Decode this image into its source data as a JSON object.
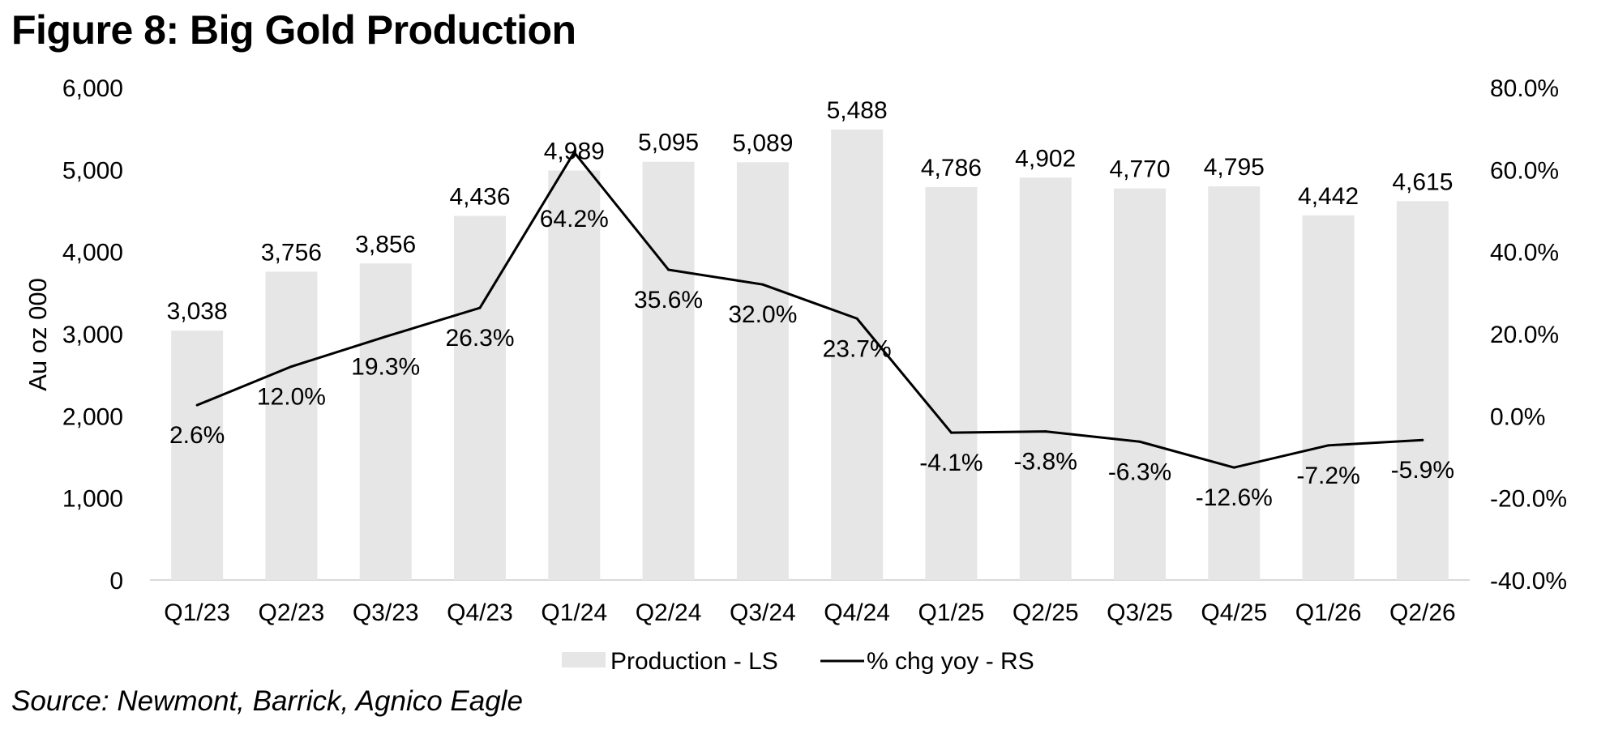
{
  "title": "Figure 8: Big Gold Production",
  "source": "Source: Newmont, Barrick, Agnico Eagle",
  "chart_data": {
    "type": "bar",
    "categories": [
      "Q1/23",
      "Q2/23",
      "Q3/23",
      "Q4/23",
      "Q1/24",
      "Q2/24",
      "Q3/24",
      "Q4/24",
      "Q1/25",
      "Q2/25",
      "Q3/25",
      "Q4/25",
      "Q1/26",
      "Q2/26"
    ],
    "series": [
      {
        "name": "Production - LS",
        "type": "bar",
        "axis": "left",
        "color": "#e6e6e6",
        "values": [
          3038,
          3756,
          3856,
          4436,
          4989,
          5095,
          5089,
          5488,
          4786,
          4902,
          4770,
          4795,
          4442,
          4615
        ],
        "labels": [
          "3,038",
          "3,756",
          "3,856",
          "4,436",
          "4,989",
          "5,095",
          "5,089",
          "5,488",
          "4,786",
          "4,902",
          "4,770",
          "4,795",
          "4,442",
          "4,615"
        ]
      },
      {
        "name": "% chg yoy - RS",
        "type": "line",
        "axis": "right",
        "color": "#000000",
        "values": [
          2.6,
          12.0,
          19.3,
          26.3,
          64.2,
          35.6,
          32.0,
          23.7,
          -4.1,
          -3.8,
          -6.3,
          -12.6,
          -7.2,
          -5.9
        ],
        "labels": [
          "2.6%",
          "12.0%",
          "19.3%",
          "26.3%",
          "64.2%",
          "35.6%",
          "32.0%",
          "23.7%",
          "-4.1%",
          "-3.8%",
          "-6.3%",
          "-12.6%",
          "-7.2%",
          "-5.9%"
        ]
      }
    ],
    "ylabel": "Au oz 000",
    "ylim": [
      0,
      6000
    ],
    "yticks": [
      "0",
      "1,000",
      "2,000",
      "3,000",
      "4,000",
      "5,000",
      "6,000"
    ],
    "y2lim": [
      -40,
      80
    ],
    "y2ticks": [
      "-40.0%",
      "-20.0%",
      "0.0%",
      "20.0%",
      "40.0%",
      "60.0%",
      "80.0%"
    ],
    "grid": false,
    "legend_position": "bottom"
  }
}
